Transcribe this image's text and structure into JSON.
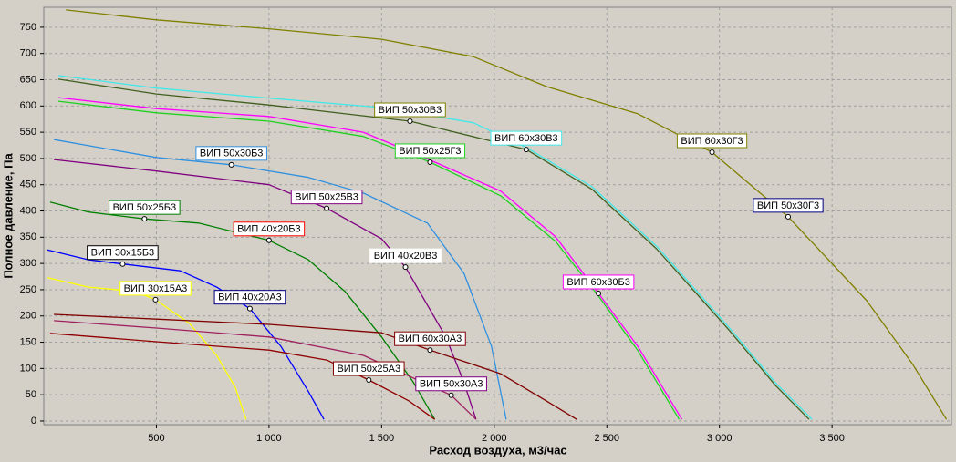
{
  "chart_data": {
    "type": "line",
    "x_label": "Расход воздуха, м3/час",
    "y_label": "Полное давление, Па",
    "xlim": [
      0,
      4030
    ],
    "ylim": [
      -7,
      788
    ],
    "xticks": [
      500,
      {
        "value": 1000,
        "label": "1 000"
      },
      {
        "value": 1500,
        "label": "1 500"
      },
      {
        "value": 2000,
        "label": "2 000"
      },
      {
        "value": 2500,
        "label": "2 500"
      },
      {
        "value": 3000,
        "label": "3 000"
      },
      {
        "value": 3500,
        "label": "3 500"
      }
    ],
    "yticks": [
      0,
      50,
      100,
      150,
      200,
      250,
      300,
      350,
      400,
      450,
      500,
      550,
      600,
      650,
      700,
      750
    ],
    "grid": true,
    "series": [
      {
        "color": "#808000",
        "x": [
          98,
          500,
          1000,
          1500,
          1907,
          2232,
          2638,
          2967,
          3305,
          3654,
          3858,
          4008
        ],
        "values": [
          783,
          764,
          747,
          727,
          694,
          637,
          585,
          512,
          389,
          229,
          108,
          3
        ]
      },
      {
        "color": "#40e8e8",
        "x": [
          65,
          500,
          1000,
          1500,
          1907,
          2142,
          2435,
          2720,
          3045,
          3248,
          3411
        ],
        "values": [
          658,
          634,
          615,
          597,
          568,
          521,
          446,
          333,
          177,
          73,
          3
        ]
      },
      {
        "color": "#406020",
        "x": [
          65,
          500,
          1000,
          1626,
          2142,
          2435,
          2720,
          3045,
          3248,
          3398
        ],
        "values": [
          651,
          623,
          602,
          571,
          517,
          441,
          328,
          172,
          68,
          3
        ]
      },
      {
        "color": "#ff00ff",
        "x": [
          65,
          500,
          1000,
          1419,
          1715,
          2028,
          2272,
          2463,
          2638,
          2833
        ],
        "values": [
          616,
          595,
          580,
          550,
          497,
          438,
          351,
          243,
          142,
          3
        ]
      },
      {
        "color": "#20d020",
        "x": [
          65,
          500,
          1000,
          1419,
          1715,
          2028,
          2272,
          2463,
          2638,
          2821
        ],
        "values": [
          609,
          587,
          571,
          542,
          493,
          429,
          342,
          238,
          134,
          3
        ]
      },
      {
        "color": "#3090e0",
        "x": [
          45,
          500,
          833,
          1175,
          1419,
          1703,
          1866,
          1988,
          2053
        ],
        "values": [
          536,
          502,
          488,
          464,
          434,
          377,
          281,
          142,
          3
        ]
      },
      {
        "color": "#800080",
        "x": [
          45,
          500,
          1000,
          1256,
          1500,
          1606,
          1785,
          1866,
          1919
        ],
        "values": [
          498,
          476,
          450,
          405,
          347,
          293,
          160,
          73,
          3
        ]
      },
      {
        "color": "#008000",
        "x": [
          28,
          199,
          447,
          687,
          1000,
          1175,
          1337,
          1500,
          1642,
          1736
        ],
        "values": [
          417,
          398,
          385,
          377,
          344,
          307,
          247,
          160,
          73,
          3
        ]
      },
      {
        "color": "#0000ff",
        "x": [
          16,
          199,
          350,
          606,
          768,
          915,
          1053,
          1175,
          1244
        ],
        "values": [
          326,
          307,
          299,
          286,
          255,
          214,
          142,
          56,
          3
        ]
      },
      {
        "color": "#ffff00",
        "x": [
          16,
          199,
          402,
          496,
          646,
          768,
          850,
          898
        ],
        "values": [
          273,
          255,
          247,
          231,
          186,
          125,
          64,
          3
        ]
      },
      {
        "color": "#800000",
        "x": [
          45,
          500,
          1000,
          1500,
          1715,
          2028,
          2232,
          2366
        ],
        "values": [
          203,
          194,
          184,
          168,
          135,
          90,
          38,
          3
        ]
      },
      {
        "color": "#a02060",
        "x": [
          45,
          500,
          1000,
          1419,
          1809,
          1919
        ],
        "values": [
          191,
          177,
          160,
          125,
          49,
          3
        ]
      },
      {
        "color": "#900000",
        "x": [
          28,
          500,
          1000,
          1256,
          1443,
          1622,
          1736
        ],
        "values": [
          167,
          151,
          135,
          116,
          78,
          38,
          3
        ]
      }
    ],
    "annotations": [
      {
        "text": "ВИП 60x30Г3",
        "x": 2967,
        "y": 512,
        "border": "#808000"
      },
      {
        "text": "ВИП 50x30Г3",
        "x": 3305,
        "y": 389,
        "border": "#000080"
      },
      {
        "text": "ВИП 60x30В3",
        "x": 2142,
        "y": 517,
        "border": "#40e8e8"
      },
      {
        "text": "ВИП 50x30В3",
        "x": 1626,
        "y": 571,
        "border": "#808000"
      },
      {
        "text": "ВИП 50x25Г3",
        "x": 1715,
        "y": 493,
        "border": "#20d020"
      },
      {
        "text": "ВИП 50x30Б3",
        "x": 833,
        "y": 488,
        "border": "#3090e0"
      },
      {
        "text": "ВИП 50x25В3",
        "x": 1256,
        "y": 405,
        "border": "#800080"
      },
      {
        "text": "ВИП 50x25Б3",
        "x": 447,
        "y": 385,
        "border": "#008000"
      },
      {
        "text": "ВИП 40x20Б3",
        "x": 1000,
        "y": 344,
        "border": "#ff0000"
      },
      {
        "text": "ВИП 40x20В3",
        "x": 1606,
        "y": 293,
        "border": "#ffffff"
      },
      {
        "text": "ВИП 30x15Б3",
        "x": 350,
        "y": 299,
        "border": "#000000"
      },
      {
        "text": "ВИП 30x15А3",
        "x": 496,
        "y": 231,
        "border": "#ffff00"
      },
      {
        "text": "ВИП 40x20А3",
        "x": 915,
        "y": 214,
        "border": "#000080"
      },
      {
        "text": "ВИП 60x30А3",
        "x": 1715,
        "y": 135,
        "border": "#800000"
      },
      {
        "text": "ВИП 50x25А3",
        "x": 1443,
        "y": 78,
        "border": "#800000"
      },
      {
        "text": "ВИП 60x30Б3",
        "x": 2463,
        "y": 243,
        "border": "#ff00ff"
      },
      {
        "text": "ВИП 50x30А3",
        "x": 1809,
        "y": 49,
        "border": "#800080"
      }
    ]
  }
}
